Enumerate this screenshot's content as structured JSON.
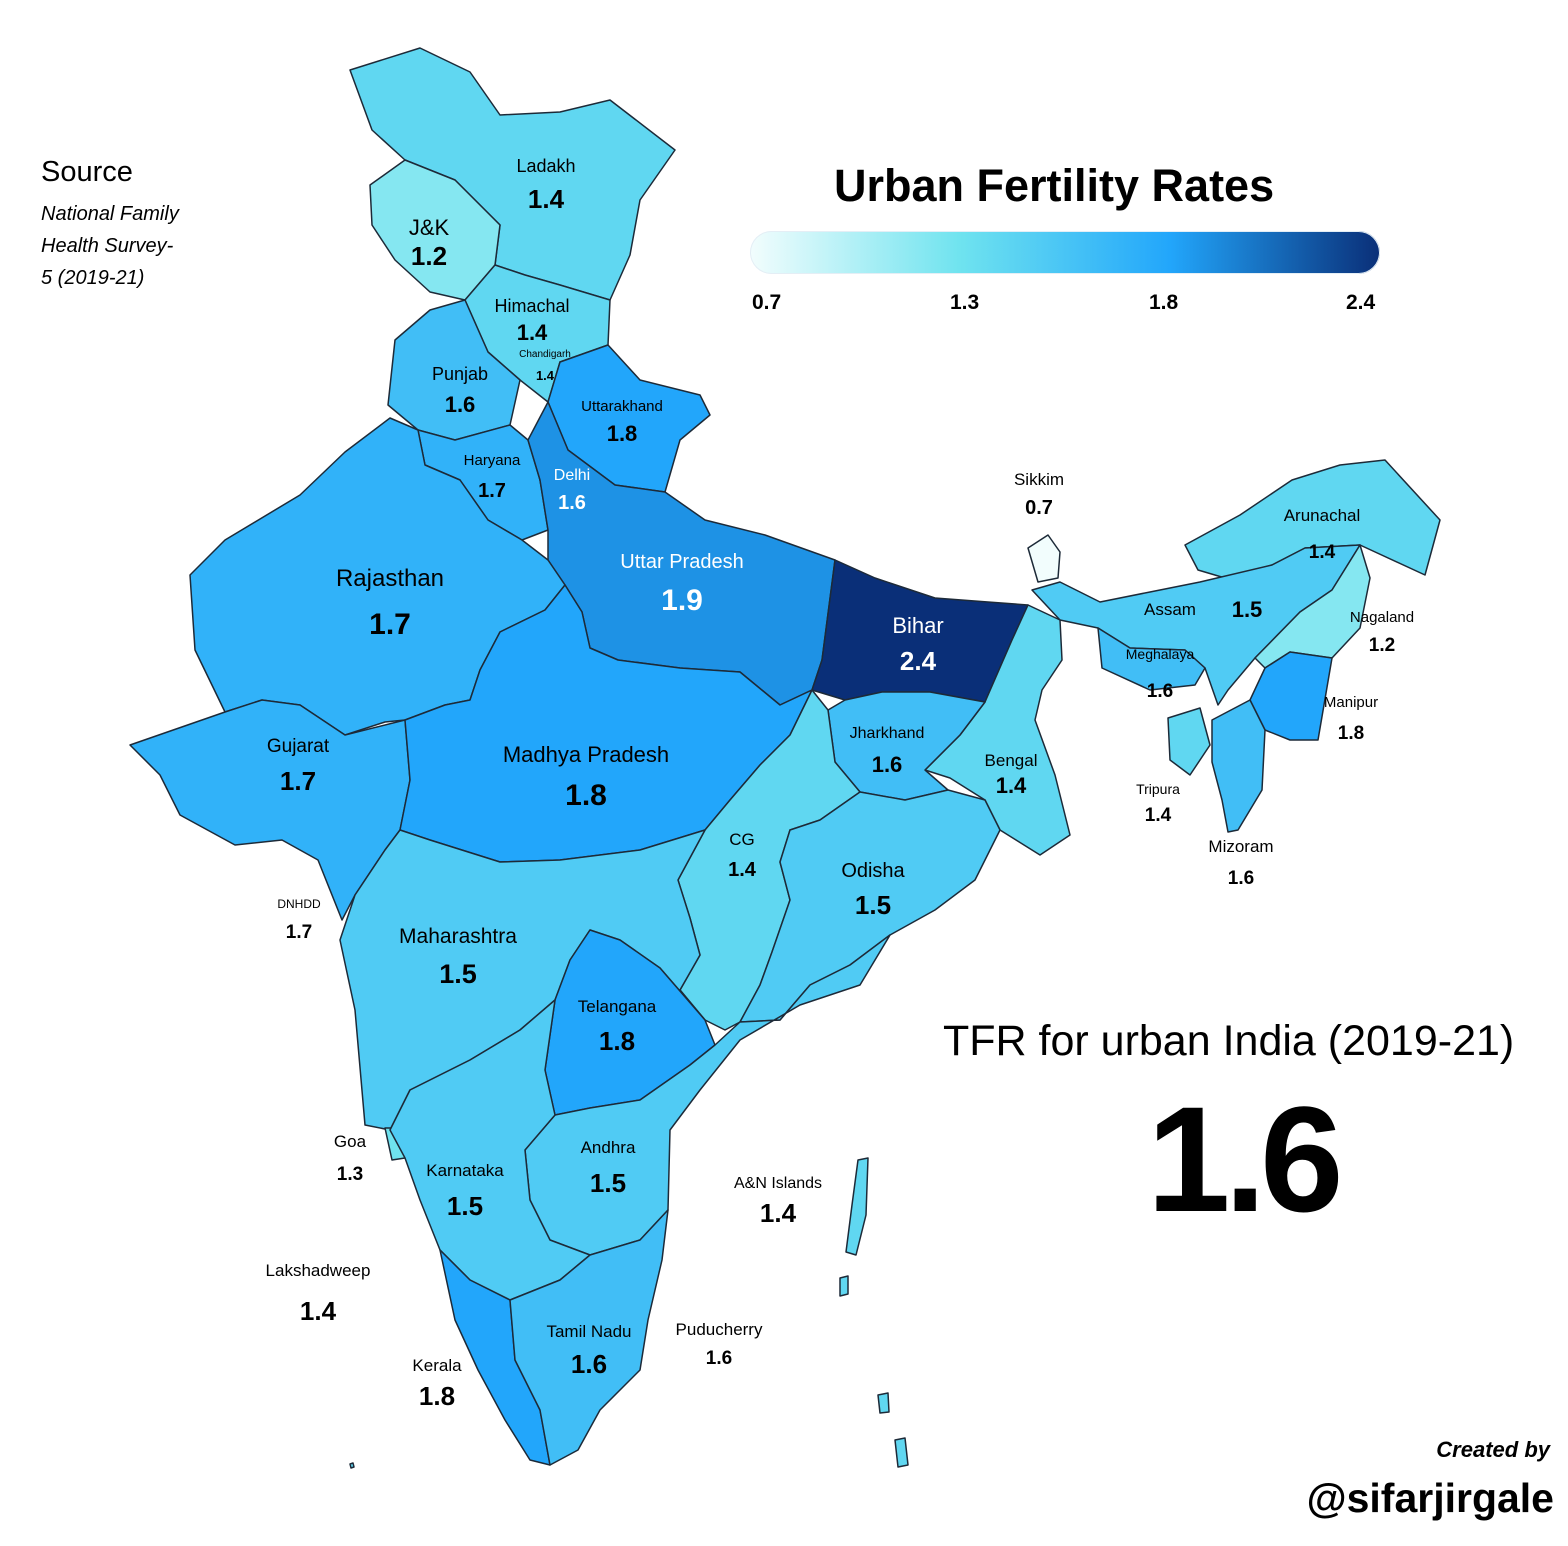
{
  "source": {
    "heading": "Source",
    "lines": [
      "National Family",
      "Health Survey-",
      "5 (2019-21)"
    ]
  },
  "title": "Urban Fertility Rates",
  "legend": {
    "ticks": [
      "0.7",
      "1.3",
      "1.8",
      "2.4"
    ],
    "colors": [
      "#f2fdfd",
      "#6fe3ef",
      "#22a6fb",
      "#0a2f78"
    ]
  },
  "summary": {
    "label": "TFR for urban India (2019-21)",
    "value": "1.6"
  },
  "credit": {
    "created_by": "Created by",
    "handle": "@sifarjirgale"
  },
  "regions": [
    {
      "id": "ladakh",
      "name": "Ladakh",
      "tfr": 1.4,
      "value": "1.4"
    },
    {
      "id": "jk",
      "name": "J&K",
      "tfr": 1.2,
      "value": "1.2"
    },
    {
      "id": "himachal",
      "name": "Himachal",
      "tfr": 1.4,
      "value": "1.4"
    },
    {
      "id": "chandigarh",
      "name": "Chandigarh",
      "tfr": 1.4,
      "value": "1.4"
    },
    {
      "id": "punjab",
      "name": "Punjab",
      "tfr": 1.6,
      "value": "1.6"
    },
    {
      "id": "uttarakhand",
      "name": "Uttarakhand",
      "tfr": 1.8,
      "value": "1.8"
    },
    {
      "id": "haryana",
      "name": "Haryana",
      "tfr": 1.7,
      "value": "1.7"
    },
    {
      "id": "delhi",
      "name": "Delhi",
      "tfr": 1.6,
      "value": "1.6"
    },
    {
      "id": "rajasthan",
      "name": "Rajasthan",
      "tfr": 1.7,
      "value": "1.7"
    },
    {
      "id": "up",
      "name": "Uttar Pradesh",
      "tfr": 1.9,
      "value": "1.9"
    },
    {
      "id": "bihar",
      "name": "Bihar",
      "tfr": 2.4,
      "value": "2.4"
    },
    {
      "id": "sikkim",
      "name": "Sikkim",
      "tfr": 0.7,
      "value": "0.7"
    },
    {
      "id": "arunachal",
      "name": "Arunachal",
      "tfr": 1.4,
      "value": "1.4"
    },
    {
      "id": "assam",
      "name": "Assam",
      "tfr": 1.5,
      "value": "1.5"
    },
    {
      "id": "nagaland",
      "name": "Nagaland",
      "tfr": 1.2,
      "value": "1.2"
    },
    {
      "id": "meghalaya",
      "name": "Meghalaya",
      "tfr": 1.6,
      "value": "1.6"
    },
    {
      "id": "manipur",
      "name": "Manipur",
      "tfr": 1.8,
      "value": "1.8"
    },
    {
      "id": "tripura",
      "name": "Tripura",
      "tfr": 1.4,
      "value": "1.4"
    },
    {
      "id": "mizoram",
      "name": "Mizoram",
      "tfr": 1.6,
      "value": "1.6"
    },
    {
      "id": "gujarat",
      "name": "Gujarat",
      "tfr": 1.7,
      "value": "1.7"
    },
    {
      "id": "mp",
      "name": "Madhya Pradesh",
      "tfr": 1.8,
      "value": "1.8"
    },
    {
      "id": "jharkhand",
      "name": "Jharkhand",
      "tfr": 1.6,
      "value": "1.6"
    },
    {
      "id": "bengal",
      "name": "Bengal",
      "tfr": 1.4,
      "value": "1.4"
    },
    {
      "id": "cg",
      "name": "CG",
      "tfr": 1.4,
      "value": "1.4"
    },
    {
      "id": "odisha",
      "name": "Odisha",
      "tfr": 1.5,
      "value": "1.5"
    },
    {
      "id": "dnhdd",
      "name": "DNHDD",
      "tfr": 1.7,
      "value": "1.7"
    },
    {
      "id": "maharashtra",
      "name": "Maharashtra",
      "tfr": 1.5,
      "value": "1.5"
    },
    {
      "id": "telangana",
      "name": "Telangana",
      "tfr": 1.8,
      "value": "1.8"
    },
    {
      "id": "goa",
      "name": "Goa",
      "tfr": 1.3,
      "value": "1.3"
    },
    {
      "id": "karnataka",
      "name": "Karnataka",
      "tfr": 1.5,
      "value": "1.5"
    },
    {
      "id": "andhra",
      "name": "Andhra",
      "tfr": 1.5,
      "value": "1.5"
    },
    {
      "id": "an_islands",
      "name": "A&N Islands",
      "tfr": 1.4,
      "value": "1.4"
    },
    {
      "id": "lakshadweep",
      "name": "Lakshadweep",
      "tfr": 1.4,
      "value": "1.4"
    },
    {
      "id": "tamilnadu",
      "name": "Tamil Nadu",
      "tfr": 1.6,
      "value": "1.6"
    },
    {
      "id": "puducherry",
      "name": "Puducherry",
      "tfr": 1.6,
      "value": "1.6"
    },
    {
      "id": "kerala",
      "name": "Kerala",
      "tfr": 1.8,
      "value": "1.8"
    }
  ]
}
